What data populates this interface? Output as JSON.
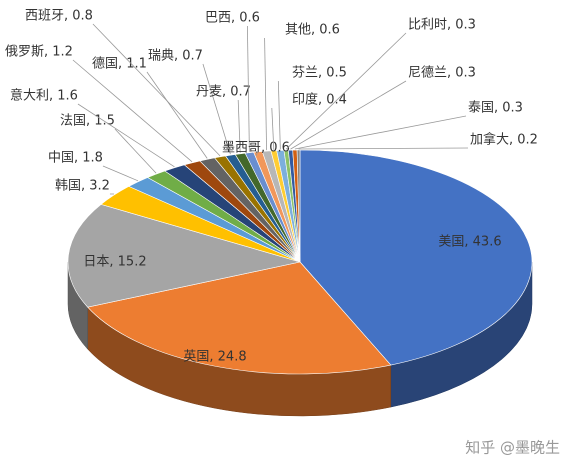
{
  "chart_data": {
    "type": "pie",
    "categories": [
      "美国",
      "英国",
      "日本",
      "韩国",
      "中国",
      "法国",
      "意大利",
      "俄罗斯",
      "德国",
      "西班牙",
      "瑞典",
      "丹麦",
      "巴西",
      "墨西哥",
      "其他",
      "印度",
      "芬兰",
      "比利时",
      "尼德兰",
      "泰国",
      "加拿大"
    ],
    "values": [
      43.6,
      24.8,
      15.2,
      3.2,
      1.8,
      1.5,
      1.6,
      1.2,
      1.1,
      0.8,
      0.7,
      0.7,
      0.6,
      0.6,
      0.6,
      0.4,
      0.5,
      0.3,
      0.3,
      0.3,
      0.2
    ],
    "value_labels": [
      "美国, 43.6",
      "英国, 24.8",
      "日本, 15.2",
      "韩国, 3.2",
      "中国, 1.8",
      "法国, 1.5",
      "意大利, 1.6",
      "俄罗斯, 1.2",
      "德国, 1.1",
      "西班牙, 0.8",
      "瑞典, 0.7",
      "丹麦, 0.7",
      "巴西, 0.6",
      "墨西哥, 0.6",
      "其他, 0.6",
      "印度, 0.4",
      "芬兰, 0.5",
      "比利时, 0.3",
      "尼德兰, 0.3",
      "泰国, 0.3",
      "加拿大, 0.2"
    ],
    "colors": [
      "#4472c4",
      "#ed7d31",
      "#a5a5a5",
      "#ffc000",
      "#5b9bd5",
      "#70ad47",
      "#264478",
      "#9e480e",
      "#636363",
      "#997300",
      "#255e91",
      "#43682b",
      "#698ed0",
      "#f1975a",
      "#b7b7b7",
      "#ffcd33",
      "#7cafdd",
      "#8cc168",
      "#335aa1",
      "#d26012",
      "#848484"
    ]
  },
  "watermark": "知乎 @墨晚生"
}
